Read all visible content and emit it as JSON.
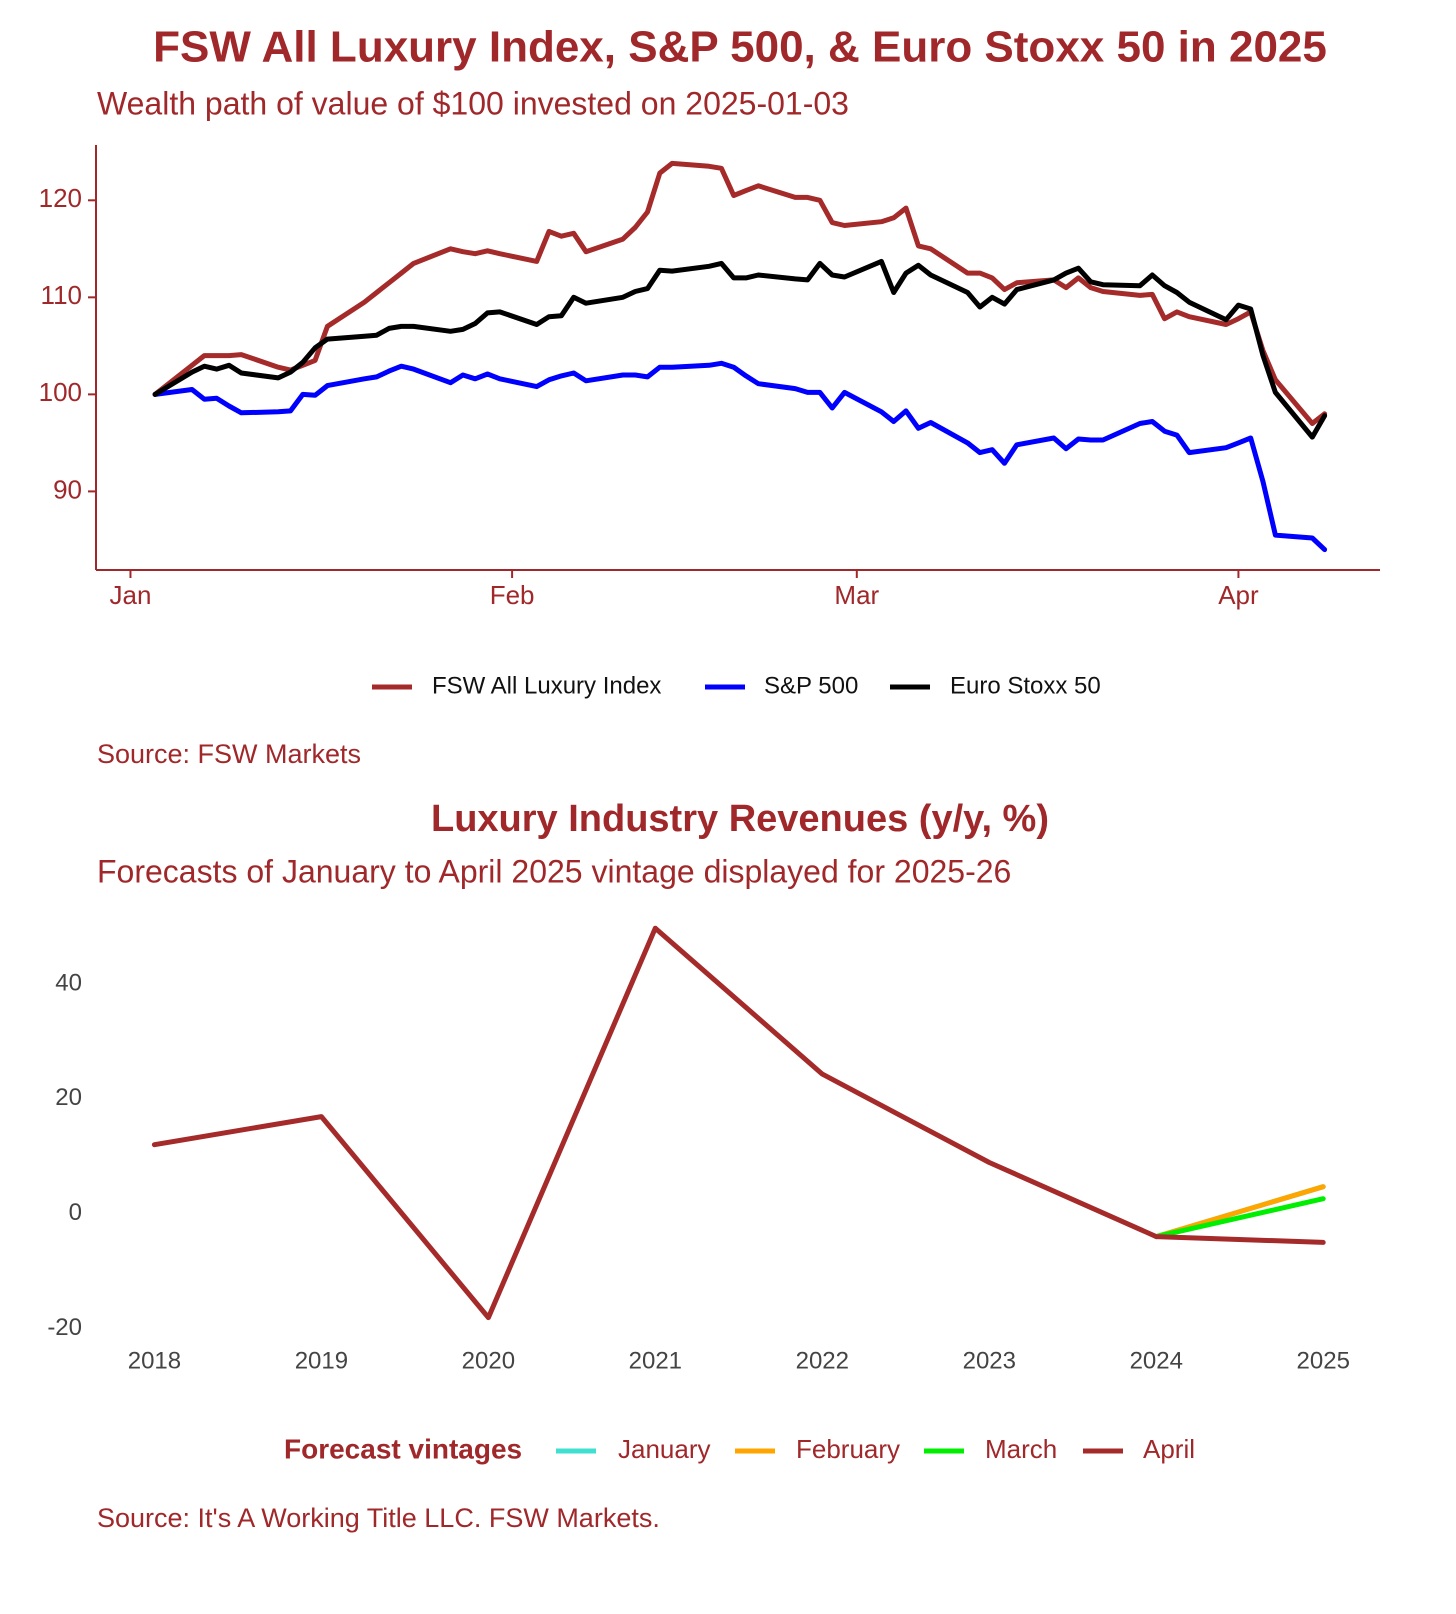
{
  "chart_data": [
    {
      "type": "line",
      "title": "FSW All Luxury Index, S&P 500, & Euro Stoxx 50 in 2025",
      "subtitle": "Wealth path of value of $100 invested on 2025-01-03",
      "caption": "Source: FSW Markets",
      "x": [
        3,
        6,
        7,
        8,
        9,
        10,
        13,
        14,
        15,
        16,
        17,
        20,
        21,
        22,
        23,
        24,
        27,
        28,
        29,
        30,
        31,
        34,
        35,
        36,
        37,
        38,
        41,
        42,
        43,
        44,
        45,
        48,
        49,
        50,
        51,
        52,
        55,
        56,
        57,
        58,
        59,
        62,
        63,
        64,
        65,
        66,
        69,
        70,
        71,
        72,
        73,
        76,
        77,
        78,
        79,
        80,
        83,
        84,
        85,
        86,
        87,
        90,
        91,
        92,
        93,
        94,
        97,
        98
      ],
      "xlim": [
        -1.8,
        102.5
      ],
      "xticks": [
        {
          "value": 1,
          "label": "Jan"
        },
        {
          "value": 32,
          "label": "Feb"
        },
        {
          "value": 60,
          "label": "Mar"
        },
        {
          "value": 91,
          "label": "Apr"
        }
      ],
      "ylim": [
        81.9,
        125.7
      ],
      "yticks": [
        90,
        100,
        110,
        120
      ],
      "axis_lines": true,
      "legend": "bottom",
      "series": [
        {
          "name": "FSW All Luxury Index",
          "color": "#a52a2a",
          "values": [
            100,
            103,
            104,
            104,
            104,
            104.1,
            102.8,
            102.5,
            103,
            103.5,
            107,
            109.5,
            110.5,
            111.5,
            112.5,
            113.5,
            115,
            114.7,
            114.5,
            114.8,
            114.5,
            113.7,
            116.8,
            116.3,
            116.6,
            114.7,
            116,
            117.2,
            118.8,
            122.8,
            123.8,
            123.5,
            123.3,
            120.5,
            121,
            121.5,
            120.3,
            120.3,
            120,
            117.7,
            117.4,
            117.8,
            118.2,
            119.2,
            115.3,
            115,
            112.5,
            112.5,
            112,
            110.8,
            111.5,
            111.8,
            111,
            112,
            111,
            110.6,
            110.2,
            110.3,
            107.8,
            108.5,
            108,
            107.2,
            107.8,
            108.5,
            104.5,
            101.5,
            97,
            98
          ]
        },
        {
          "name": "S&P 500",
          "color": "#0000ff",
          "values": [
            100,
            100.5,
            99.5,
            99.6,
            98.8,
            98.1,
            98.2,
            98.3,
            100,
            99.9,
            100.9,
            101.6,
            101.8,
            102.4,
            102.9,
            102.6,
            101.2,
            102,
            101.6,
            102.1,
            101.6,
            100.8,
            101.5,
            101.9,
            102.2,
            101.4,
            102,
            102,
            101.8,
            102.8,
            102.8,
            103,
            103.2,
            102.8,
            101.9,
            101.1,
            100.6,
            100.2,
            100.2,
            98.6,
            100.2,
            98.2,
            97.2,
            98.3,
            96.5,
            97.1,
            95,
            94,
            94.3,
            92.9,
            94.8,
            95.5,
            94.4,
            95.4,
            95.3,
            95.3,
            97,
            97.2,
            96.2,
            95.8,
            94,
            94.5,
            95,
            95.5,
            91,
            85.5,
            85.2,
            84
          ]
        },
        {
          "name": "Euro Stoxx 50",
          "color": "#000000",
          "values": [
            100,
            102.3,
            102.9,
            102.6,
            103,
            102.2,
            101.7,
            102.3,
            103.3,
            104.8,
            105.7,
            106,
            106.1,
            106.8,
            107,
            107,
            106.5,
            106.7,
            107.3,
            108.4,
            108.5,
            107.2,
            108,
            108.1,
            110,
            109.4,
            110,
            110.6,
            110.9,
            112.8,
            112.7,
            113.2,
            113.5,
            112,
            112,
            112.3,
            111.9,
            111.8,
            113.5,
            112.3,
            112.1,
            113.7,
            110.5,
            112.5,
            113.3,
            112.3,
            110.5,
            109,
            110,
            109.3,
            110.8,
            111.8,
            112.5,
            113,
            111.6,
            111.3,
            111.2,
            112.3,
            111.2,
            110.5,
            109.5,
            107.7,
            109.2,
            108.8,
            104,
            100.2,
            95.6,
            97.8
          ]
        }
      ]
    },
    {
      "type": "line",
      "title": "Luxury Industry Revenues (y/y, %)",
      "subtitle": "Forecasts of January to April 2025 vintage displayed for 2025-26",
      "caption": "Source: It's A Working Title LLC. FSW Markets.",
      "x": [
        2018,
        2019,
        2020,
        2021,
        2022,
        2023,
        2024,
        2025
      ],
      "xlim": [
        2017.65,
        2025.34
      ],
      "xticks": [
        2018,
        2019,
        2020,
        2021,
        2022,
        2023,
        2024,
        2025
      ],
      "ylim": [
        -22,
        52
      ],
      "yticks": [
        -20,
        0,
        20,
        40
      ],
      "axis_lines": false,
      "legend": "bottom",
      "legend_title": "Forecast vintages",
      "series": [
        {
          "name": "January",
          "color": "#40e0d0",
          "values": [
            null,
            null,
            null,
            null,
            null,
            null,
            -4,
            4.7
          ]
        },
        {
          "name": "February",
          "color": "#ffa500",
          "values": [
            null,
            null,
            null,
            null,
            null,
            null,
            -4,
            4.7
          ]
        },
        {
          "name": "March",
          "color": "#00ee00",
          "values": [
            null,
            null,
            null,
            null,
            null,
            null,
            -4,
            2.6
          ]
        },
        {
          "name": "April",
          "color": "#a52a2a",
          "values": [
            12,
            16.9,
            -18.1,
            49.7,
            24.3,
            8.9,
            -4,
            -5
          ]
        }
      ]
    }
  ]
}
